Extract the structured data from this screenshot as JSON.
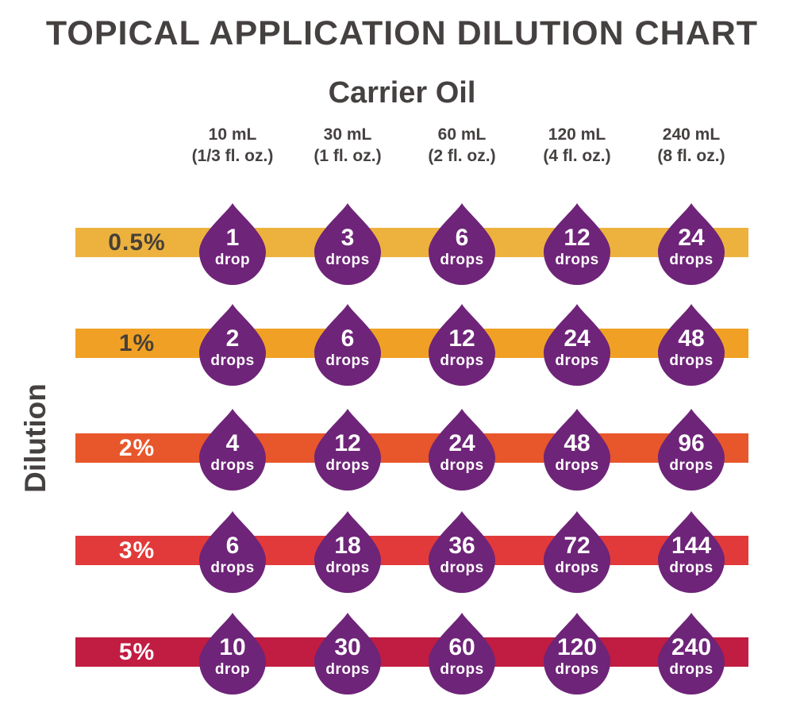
{
  "title": "TOPICAL APPLICATION DILUTION CHART",
  "subtitle": "Carrier Oil",
  "ylabel": "Dilution",
  "colors": {
    "heading_text": "#454140",
    "drop_fill": "#6E2478",
    "drop_text": "#FFFFFF"
  },
  "chart_data": {
    "type": "table",
    "title": "TOPICAL APPLICATION DILUTION CHART",
    "column_axis_title": "Carrier Oil",
    "row_axis_title": "Dilution",
    "columns": [
      {
        "volume": "10 mL",
        "ounces": "(1/3 fl. oz.)"
      },
      {
        "volume": "30 mL",
        "ounces": "(1 fl. oz.)"
      },
      {
        "volume": "60 mL",
        "ounces": "(2 fl. oz.)"
      },
      {
        "volume": "120 mL",
        "ounces": "(4 fl. oz.)"
      },
      {
        "volume": "240 mL",
        "ounces": "(8 fl. oz.)"
      }
    ],
    "rows": [
      {
        "dilution": "0.5%",
        "bar_color": "#EDB23E",
        "label_color": "#474038",
        "cells": [
          {
            "value": "1",
            "unit": "drop"
          },
          {
            "value": "3",
            "unit": "drops"
          },
          {
            "value": "6",
            "unit": "drops"
          },
          {
            "value": "12",
            "unit": "drops"
          },
          {
            "value": "24",
            "unit": "drops"
          }
        ]
      },
      {
        "dilution": "1%",
        "bar_color": "#F0A125",
        "label_color": "#474038",
        "cells": [
          {
            "value": "2",
            "unit": "drops"
          },
          {
            "value": "6",
            "unit": "drops"
          },
          {
            "value": "12",
            "unit": "drops"
          },
          {
            "value": "24",
            "unit": "drops"
          },
          {
            "value": "48",
            "unit": "drops"
          }
        ]
      },
      {
        "dilution": "2%",
        "bar_color": "#E8562B",
        "label_color": "#FFFFFF",
        "cells": [
          {
            "value": "4",
            "unit": "drops"
          },
          {
            "value": "12",
            "unit": "drops"
          },
          {
            "value": "24",
            "unit": "drops"
          },
          {
            "value": "48",
            "unit": "drops"
          },
          {
            "value": "96",
            "unit": "drops"
          }
        ]
      },
      {
        "dilution": "3%",
        "bar_color": "#E23A3A",
        "label_color": "#FFFFFF",
        "cells": [
          {
            "value": "6",
            "unit": "drops"
          },
          {
            "value": "18",
            "unit": "drops"
          },
          {
            "value": "36",
            "unit": "drops"
          },
          {
            "value": "72",
            "unit": "drops"
          },
          {
            "value": "144",
            "unit": "drops"
          }
        ]
      },
      {
        "dilution": "5%",
        "bar_color": "#C11C42",
        "label_color": "#FFFFFF",
        "cells": [
          {
            "value": "10",
            "unit": "drop"
          },
          {
            "value": "30",
            "unit": "drops"
          },
          {
            "value": "60",
            "unit": "drops"
          },
          {
            "value": "120",
            "unit": "drops"
          },
          {
            "value": "240",
            "unit": "drops"
          }
        ]
      }
    ],
    "drop_color": "#6E2478",
    "drop_text_color": "#FFFFFF"
  }
}
